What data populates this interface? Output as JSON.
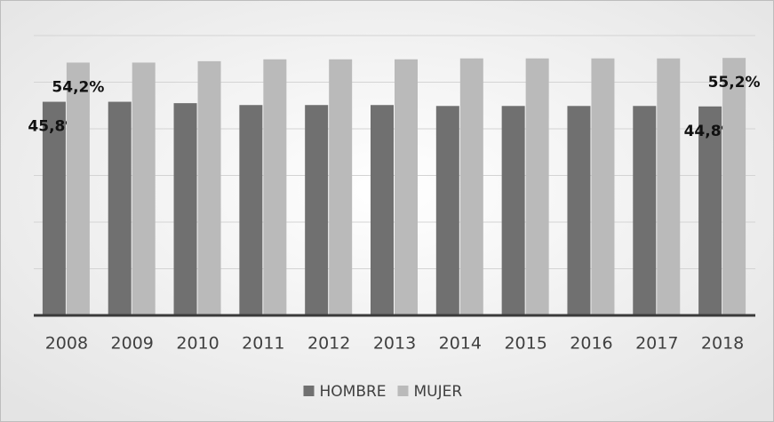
{
  "chart_data": {
    "type": "bar",
    "categories": [
      "2008",
      "2009",
      "2010",
      "2011",
      "2012",
      "2013",
      "2014",
      "2015",
      "2016",
      "2017",
      "2018"
    ],
    "series": [
      {
        "name": "HOMBRE",
        "color": "#707070",
        "values": [
          45.8,
          45.8,
          45.5,
          45.1,
          45.1,
          45.1,
          44.9,
          44.9,
          44.9,
          44.9,
          44.8
        ],
        "value_labels": [
          "45,8%",
          null,
          null,
          null,
          null,
          null,
          null,
          null,
          null,
          null,
          "44,8%"
        ]
      },
      {
        "name": "MUJER",
        "color": "#bababa",
        "values": [
          54.2,
          54.2,
          54.5,
          54.9,
          54.9,
          54.9,
          55.1,
          55.1,
          55.1,
          55.1,
          55.2
        ],
        "value_labels": [
          "54,2%",
          null,
          null,
          null,
          null,
          null,
          null,
          null,
          null,
          null,
          "55,2%"
        ]
      }
    ],
    "ylim": [
      0,
      60
    ],
    "yticks": [
      0,
      10,
      20,
      30,
      40,
      50,
      60
    ],
    "grid": true,
    "legend": "bottom"
  }
}
